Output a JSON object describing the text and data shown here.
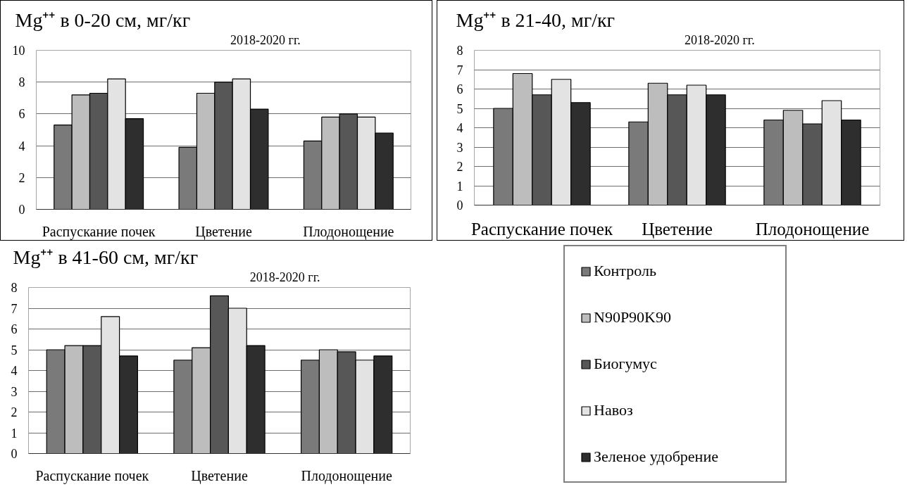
{
  "chart_data": [
    {
      "type": "bar",
      "title": "Mg⁺⁺ в 0-20 см, мг/кг",
      "subtitle": "2018-2020 гг.",
      "categories": [
        "Распускание почек",
        "Цветение",
        "Плодонощение"
      ],
      "ylim": [
        0,
        10
      ],
      "yticks": [
        0,
        2,
        4,
        6,
        8,
        10
      ],
      "grid": "y",
      "series": [
        {
          "color": "#7a7a7a",
          "values": [
            5.3,
            3.9,
            4.3
          ]
        },
        {
          "color": "#bdbdbd",
          "values": [
            7.2,
            7.3,
            5.8
          ]
        },
        {
          "color": "#575757",
          "values": [
            7.3,
            8.0,
            6.0
          ]
        },
        {
          "color": "#e3e3e3",
          "values": [
            8.2,
            8.2,
            5.8
          ]
        },
        {
          "color": "#2e2e2e",
          "values": [
            5.7,
            6.3,
            4.8
          ]
        }
      ]
    },
    {
      "type": "bar",
      "title": "Mg⁺⁺ в 21-40, мг/кг",
      "subtitle": "2018-2020 гг.",
      "categories": [
        "Распускание почек",
        "Цветение",
        "Плодонощение"
      ],
      "ylim": [
        0,
        8
      ],
      "yticks": [
        0,
        1,
        2,
        3,
        4,
        5,
        6,
        7,
        8
      ],
      "grid": "y",
      "series": [
        {
          "color": "#7a7a7a",
          "values": [
            5.0,
            4.3,
            4.4
          ]
        },
        {
          "color": "#bdbdbd",
          "values": [
            6.8,
            6.3,
            4.9
          ]
        },
        {
          "color": "#575757",
          "values": [
            5.7,
            5.7,
            4.2
          ]
        },
        {
          "color": "#e3e3e3",
          "values": [
            6.5,
            6.2,
            5.4
          ]
        },
        {
          "color": "#2e2e2e",
          "values": [
            5.3,
            5.7,
            4.4
          ]
        }
      ]
    },
    {
      "type": "bar",
      "title": "Mg⁺⁺ в 41-60 см, мг/кг",
      "subtitle": "2018-2020 гг.",
      "categories": [
        "Распускание почек",
        "Цветение",
        "Плодонощение"
      ],
      "ylim": [
        0,
        8
      ],
      "yticks": [
        0,
        1,
        2,
        3,
        4,
        5,
        6,
        7,
        8
      ],
      "grid": "y",
      "legend": "right",
      "series": [
        {
          "name": "Контроль",
          "color": "#7a7a7a",
          "values": [
            5.0,
            4.5,
            4.5
          ]
        },
        {
          "name": "N90P90K90",
          "color": "#bdbdbd",
          "values": [
            5.2,
            5.1,
            5.0
          ]
        },
        {
          "name": "Биогумус",
          "color": "#575757",
          "values": [
            5.2,
            7.6,
            4.9
          ]
        },
        {
          "name": "Навоз",
          "color": "#e3e3e3",
          "values": [
            6.6,
            7.0,
            4.5
          ]
        },
        {
          "name": "Зеленое удобрение",
          "color": "#2e2e2e",
          "values": [
            4.7,
            5.2,
            4.7
          ]
        }
      ]
    }
  ]
}
